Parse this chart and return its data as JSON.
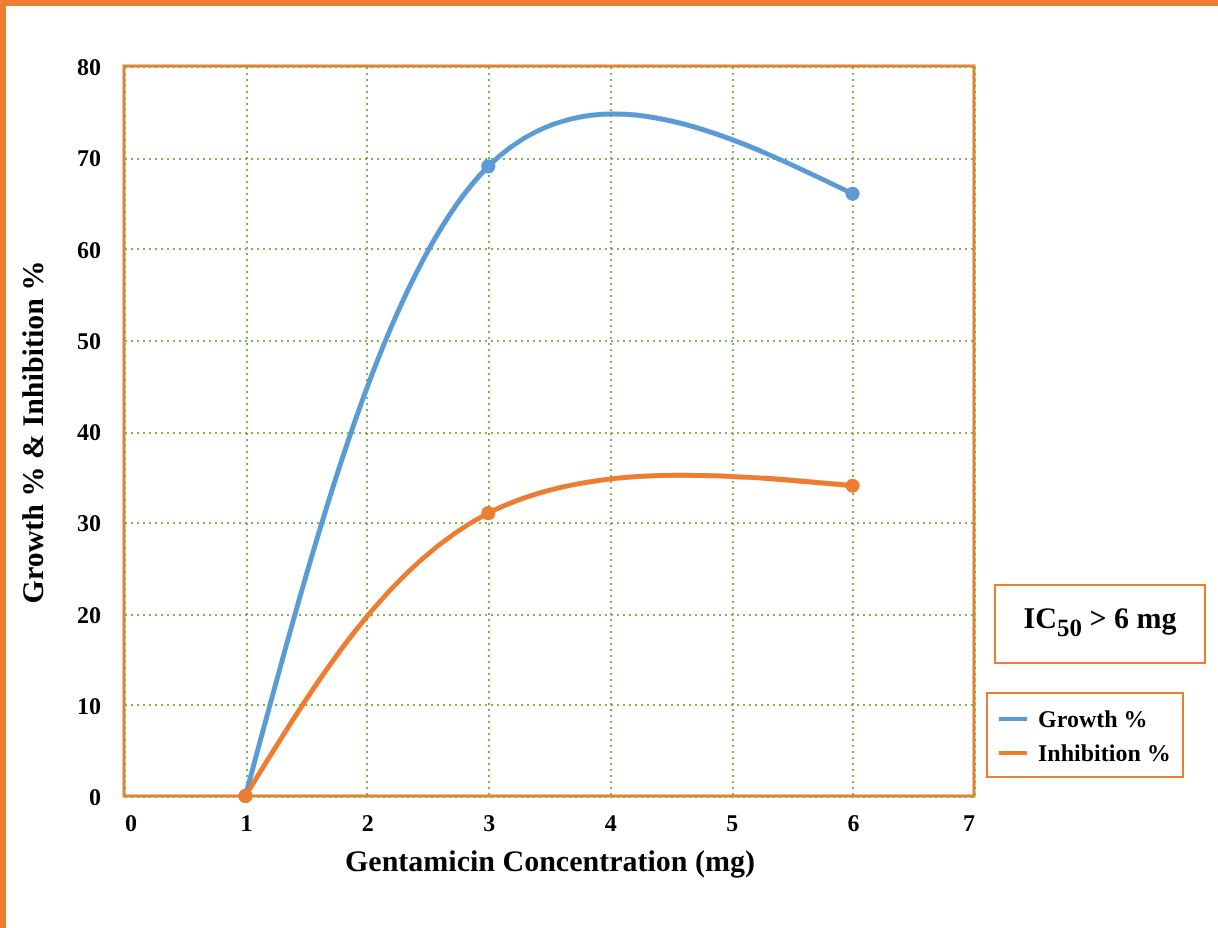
{
  "chart_data": {
    "type": "line",
    "xlabel": "Gentamicin Concentration (mg)",
    "ylabel": "Growth % & Inhibition %",
    "x": [
      1,
      3,
      6
    ],
    "series": [
      {
        "name": "Growth %",
        "color": "#5b9bd5",
        "values": [
          0,
          69,
          66
        ]
      },
      {
        "name": "Inhibition %",
        "color": "#ed7d31",
        "values": [
          0,
          31,
          34
        ]
      }
    ],
    "xlim": [
      0,
      7
    ],
    "xticks": [
      0,
      1,
      2,
      3,
      4,
      5,
      6,
      7
    ],
    "ylim": [
      0,
      80
    ],
    "yticks": [
      0,
      10,
      20,
      30,
      40,
      50,
      60,
      70,
      80
    ],
    "grid": true,
    "legend": "right",
    "marker": "circle",
    "line_style": "solid",
    "annotations": [
      "IC$_{50}$ > 6 mg"
    ]
  }
}
